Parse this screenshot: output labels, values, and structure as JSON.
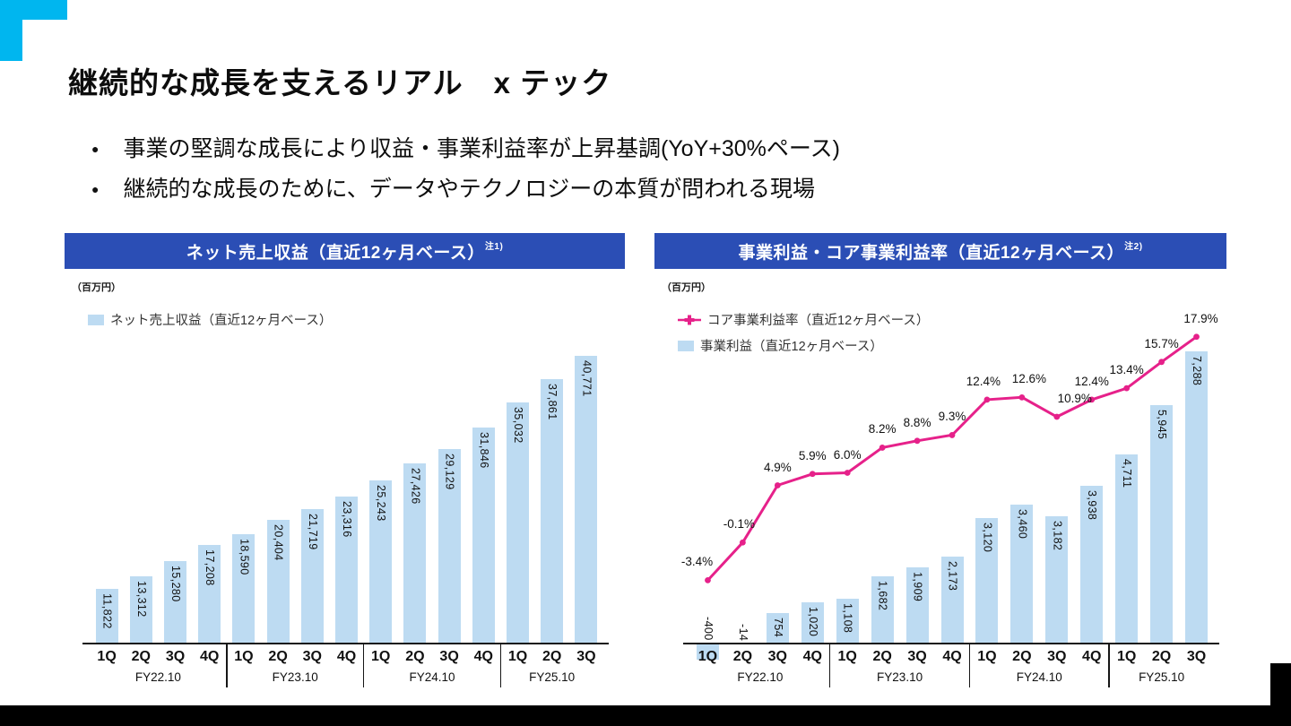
{
  "slide": {
    "title": "継続的な成長を支えるリアル　x テック",
    "bullet_marker": "●",
    "bullets": [
      "事業の堅調な成長により収益・事業利益率が上昇基調(YoY+30%ペース)",
      "継続的な成長のために、データやテクノロジーの本質が問われる現場"
    ]
  },
  "colors": {
    "header_blue": "#2B4EB5",
    "bar_blue": "#BDDBF2",
    "line_pink": "#E6218A",
    "accent_cyan": "#00B6EF",
    "footer_black": "#000000",
    "axis_black": "#161616"
  },
  "chart_data": [
    {
      "type": "bar",
      "panel_title": "ネット売上収益（直近12ヶ月ベース）",
      "note_ref": "注1)",
      "unit": "（百万円）",
      "legend": [
        {
          "label": "ネット売上収益（直近12ヶ月ベース）",
          "swatch": "bar"
        }
      ],
      "categories": [
        "1Q",
        "2Q",
        "3Q",
        "4Q",
        "1Q",
        "2Q",
        "3Q",
        "4Q",
        "1Q",
        "2Q",
        "3Q",
        "4Q",
        "1Q",
        "2Q",
        "3Q"
      ],
      "groups": [
        {
          "label": "FY22.10",
          "span": 4
        },
        {
          "label": "FY23.10",
          "span": 4
        },
        {
          "label": "FY24.10",
          "span": 4
        },
        {
          "label": "FY25.10",
          "span": 3
        }
      ],
      "values": [
        11822,
        13312,
        15280,
        17208,
        18590,
        20404,
        21719,
        23316,
        25243,
        27426,
        29129,
        31846,
        35032,
        37861,
        40771
      ],
      "value_labels": [
        "11,822",
        "13,312",
        "15,280",
        "17,208",
        "18,590",
        "20,404",
        "21,719",
        "23,316",
        "25,243",
        "27,426",
        "29,129",
        "31,846",
        "35,032",
        "37,861",
        "40,771"
      ],
      "ylabel": "百万円",
      "grid": false,
      "legend_position": "top-left"
    },
    {
      "type": "bar+line",
      "panel_title": "事業利益・コア事業利益率（直近12ヶ月ベース）",
      "note_ref": "注2)",
      "unit": "（百万円）",
      "legend": [
        {
          "label": "コア事業利益率（直近12ヶ月ベース）",
          "swatch": "line"
        },
        {
          "label": "事業利益（直近12ヶ月ベース）",
          "swatch": "bar"
        }
      ],
      "categories": [
        "1Q",
        "2Q",
        "3Q",
        "4Q",
        "1Q",
        "2Q",
        "3Q",
        "4Q",
        "1Q",
        "2Q",
        "3Q",
        "4Q",
        "1Q",
        "2Q",
        "3Q"
      ],
      "groups": [
        {
          "label": "FY22.10",
          "span": 4
        },
        {
          "label": "FY23.10",
          "span": 4
        },
        {
          "label": "FY24.10",
          "span": 4
        },
        {
          "label": "FY25.10",
          "span": 3
        }
      ],
      "series": [
        {
          "name": "事業利益（直近12ヶ月ベース）",
          "type": "bar",
          "values": [
            -400,
            -14,
            754,
            1020,
            1108,
            1682,
            1909,
            2173,
            3120,
            3460,
            3182,
            3938,
            4711,
            5945,
            7288
          ],
          "value_labels": [
            "-400",
            "-14",
            "754",
            "1,020",
            "1,108",
            "1,682",
            "1,909",
            "2,173",
            "3,120",
            "3,460",
            "3,182",
            "3,938",
            "4,711",
            "5,945",
            "7,288"
          ]
        },
        {
          "name": "コア事業利益率（直近12ヶ月ベース）",
          "type": "line",
          "values": [
            -3.4,
            -0.1,
            4.9,
            5.9,
            6.0,
            8.2,
            8.8,
            9.3,
            12.4,
            12.6,
            10.9,
            12.4,
            13.4,
            15.7,
            17.9
          ],
          "value_labels": [
            "-3.4%",
            "-0.1%",
            "4.9%",
            "5.9%",
            "6.0%",
            "8.2%",
            "8.8%",
            "9.3%",
            "12.4%",
            "12.6%",
            "10.9%",
            "12.4%",
            "13.4%",
            "15.7%",
            "17.9%"
          ]
        }
      ],
      "ylabel": "百万円",
      "grid": false,
      "legend_position": "top-left"
    }
  ]
}
